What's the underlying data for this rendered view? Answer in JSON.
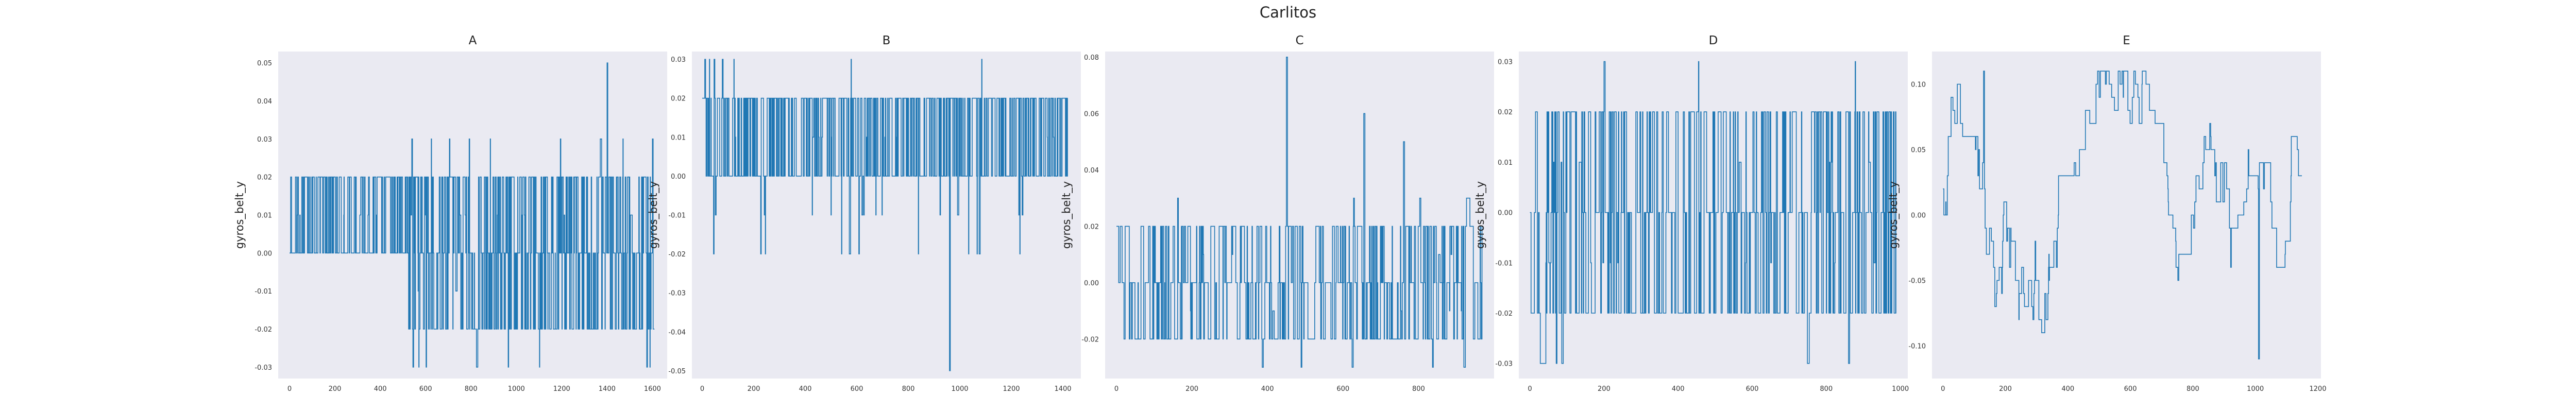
{
  "figure": {
    "title": "Carlitos",
    "line_color": "#1f77b4",
    "panel_bg": "#eaeaf2",
    "grid": false
  },
  "chart_data": [
    {
      "type": "line",
      "title": "A",
      "xlabel": "",
      "ylabel": "gyros_belt_y",
      "n": 1610,
      "xlim": [
        -50,
        1665
      ],
      "ylim": [
        -0.033,
        0.053
      ],
      "xticks": [
        0,
        200,
        400,
        600,
        800,
        1000,
        1200,
        1400,
        1600
      ],
      "yticks": [
        -0.03,
        -0.02,
        -0.01,
        0.0,
        0.01,
        0.02,
        0.03,
        0.04,
        0.05
      ],
      "ytick_labels": [
        "-0.03",
        "-0.02",
        "-0.01",
        "0.00",
        "0.01",
        "0.02",
        "0.03",
        "0.04",
        "0.05"
      ],
      "levels": [
        -0.03,
        -0.02,
        -0.01,
        0.0,
        0.01,
        0.02,
        0.03,
        0.04,
        0.05
      ],
      "baseline": 0.0,
      "segments": [
        {
          "from": 0,
          "to": 520,
          "values": [
            0.0,
            0.02
          ],
          "spike": [
            0.01
          ]
        },
        {
          "from": 520,
          "to": 1000,
          "values": [
            0.0,
            0.02,
            -0.02
          ],
          "spike": [
            0.03,
            -0.03,
            -0.01,
            0.01
          ]
        },
        {
          "from": 1000,
          "to": 1610,
          "values": [
            0.0,
            0.02,
            -0.02
          ],
          "spike": [
            0.03,
            -0.03,
            -0.01,
            0.01
          ]
        }
      ],
      "extremes": [
        {
          "x": 1400,
          "y": 0.05
        },
        {
          "x": 1575,
          "y": -0.03
        },
        {
          "x": 1600,
          "y": 0.03
        }
      ]
    },
    {
      "type": "line",
      "title": "B",
      "xlabel": "",
      "ylabel": "gyros_belt_y",
      "n": 1420,
      "xlim": [
        -40,
        1470
      ],
      "ylim": [
        -0.052,
        0.032
      ],
      "xticks": [
        0,
        200,
        400,
        600,
        800,
        1000,
        1200,
        1400
      ],
      "yticks": [
        -0.05,
        -0.04,
        -0.03,
        -0.02,
        -0.01,
        0.0,
        0.01,
        0.02,
        0.03
      ],
      "ytick_labels": [
        "-0.05",
        "-0.04",
        "-0.03",
        "-0.02",
        "-0.01",
        "0.00",
        "0.01",
        "0.02",
        "0.03"
      ],
      "levels": [
        -0.05,
        -0.02,
        -0.01,
        0.0,
        0.01,
        0.02,
        0.03
      ],
      "baseline": 0.0,
      "segments": [
        {
          "from": 0,
          "to": 1420,
          "values": [
            0.0,
            0.02
          ],
          "spike": [
            -0.02,
            0.01,
            -0.01,
            0.03
          ]
        }
      ],
      "extremes": [
        {
          "x": 960,
          "y": -0.05
        },
        {
          "x": 10,
          "y": 0.03
        }
      ]
    },
    {
      "type": "line",
      "title": "C",
      "xlabel": "",
      "ylabel": "gyros_belt_y",
      "n": 970,
      "xlim": [
        -30,
        1000
      ],
      "ylim": [
        -0.034,
        0.082
      ],
      "xticks": [
        0,
        200,
        400,
        600,
        800
      ],
      "yticks": [
        -0.02,
        0.0,
        0.02,
        0.04,
        0.06,
        0.08
      ],
      "ytick_labels": [
        "-0.02",
        "0.00",
        "0.02",
        "0.04",
        "0.06",
        "0.08"
      ],
      "levels": [
        -0.03,
        -0.02,
        -0.01,
        0.0,
        0.01,
        0.02,
        0.03,
        0.05,
        0.08
      ],
      "baseline": 0.0,
      "segments": [
        {
          "from": 0,
          "to": 970,
          "values": [
            0.0,
            0.02,
            -0.02
          ],
          "spike": [
            -0.03,
            0.01,
            -0.01,
            0.03
          ]
        }
      ],
      "extremes": [
        {
          "x": 450,
          "y": 0.08
        },
        {
          "x": 655,
          "y": 0.06
        },
        {
          "x": 760,
          "y": 0.05
        }
      ]
    },
    {
      "type": "line",
      "title": "D",
      "xlabel": "",
      "ylabel": "gyros_belt_y",
      "n": 990,
      "xlim": [
        -30,
        1020
      ],
      "ylim": [
        -0.033,
        0.032
      ],
      "xticks": [
        0,
        200,
        400,
        600,
        800,
        1000
      ],
      "yticks": [
        -0.03,
        -0.02,
        -0.01,
        0.0,
        0.01,
        0.02,
        0.03
      ],
      "ytick_labels": [
        "-0.03",
        "-0.02",
        "-0.01",
        "0.00",
        "0.01",
        "0.02",
        "0.03"
      ],
      "levels": [
        -0.03,
        -0.02,
        -0.01,
        0.0,
        0.01,
        0.02,
        0.03
      ],
      "baseline": 0.0,
      "segments": [
        {
          "from": 0,
          "to": 990,
          "values": [
            0.0,
            0.02,
            -0.02
          ],
          "spike": [
            0.03,
            -0.03,
            0.01,
            -0.01
          ]
        }
      ],
      "extremes": [
        {
          "x": 860,
          "y": -0.03
        },
        {
          "x": 200,
          "y": 0.03
        }
      ]
    },
    {
      "type": "line",
      "title": "E",
      "xlabel": "",
      "ylabel": "gyros_belt_y",
      "n": 1150,
      "xlim": [
        -35,
        1210
      ],
      "ylim": [
        -0.125,
        0.125
      ],
      "xticks": [
        0,
        200,
        400,
        600,
        800,
        1000,
        1200
      ],
      "yticks": [
        -0.1,
        -0.05,
        0.0,
        0.05,
        0.1
      ],
      "ytick_labels": [
        "-0.10",
        "-0.05",
        "0.00",
        "0.05",
        "0.10"
      ],
      "style": "random-walk",
      "wave_start": 0.02,
      "range": [
        -0.11,
        0.11
      ],
      "extremes": [
        {
          "x": 130,
          "y": 0.11
        },
        {
          "x": 1010,
          "y": -0.11
        }
      ]
    }
  ]
}
